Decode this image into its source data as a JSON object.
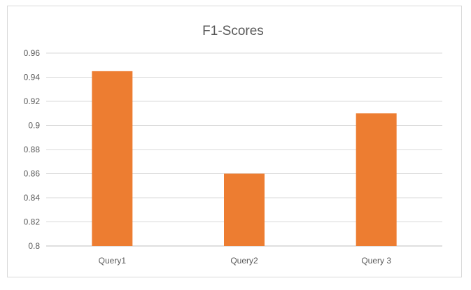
{
  "chart_data": {
    "type": "bar",
    "title": "F1-Scores",
    "xlabel": "",
    "ylabel": "",
    "categories": [
      "Query1",
      "Query2",
      "Query 3"
    ],
    "values": [
      0.945,
      0.86,
      0.91
    ],
    "ylim": [
      0.8,
      0.96
    ],
    "yticks": [
      "0.8",
      "0.82",
      "0.84",
      "0.86",
      "0.88",
      "0.9",
      "0.92",
      "0.94",
      "0.96"
    ],
    "grid": true,
    "legend": "none",
    "bar_color": "#ED7D31"
  }
}
